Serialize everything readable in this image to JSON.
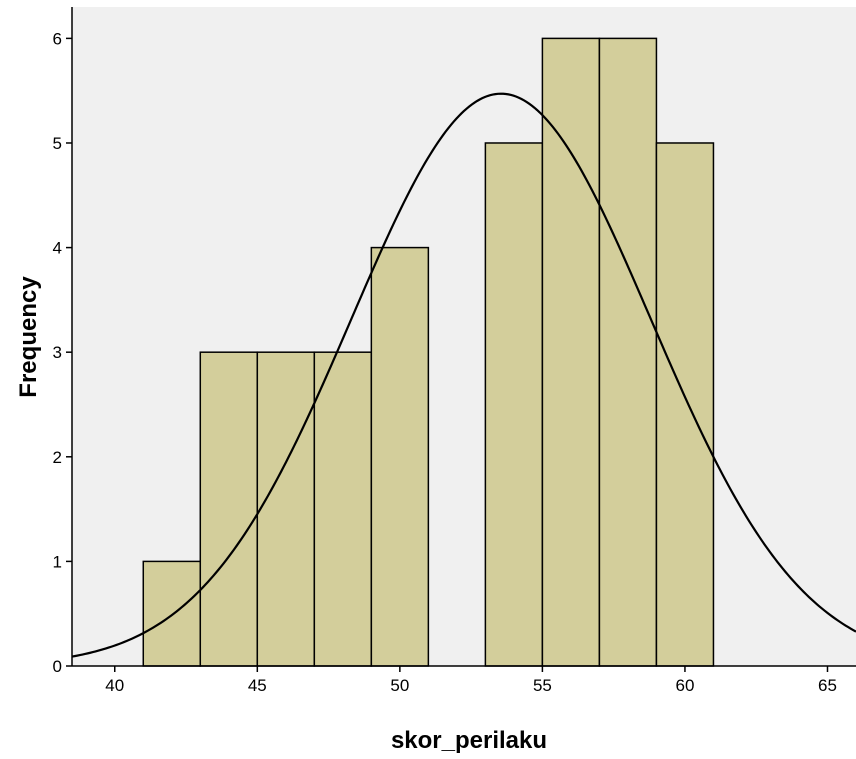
{
  "chart_data": {
    "type": "histogram",
    "xlabel": "skor_perilaku",
    "ylabel": "Frequency",
    "xlim": [
      38.5,
      66
    ],
    "ylim": [
      0,
      6.3
    ],
    "x_ticks": [
      40,
      45,
      50,
      55,
      60,
      65
    ],
    "y_ticks": [
      0,
      1,
      2,
      3,
      4,
      5,
      6
    ],
    "bins": [
      {
        "start": 41,
        "end": 43,
        "count": 1
      },
      {
        "start": 43,
        "end": 45,
        "count": 3
      },
      {
        "start": 45,
        "end": 47,
        "count": 3
      },
      {
        "start": 47,
        "end": 49,
        "count": 3
      },
      {
        "start": 49,
        "end": 51,
        "count": 4
      },
      {
        "start": 51,
        "end": 53,
        "count": 0
      },
      {
        "start": 53,
        "end": 55,
        "count": 5
      },
      {
        "start": 55,
        "end": 57,
        "count": 6
      },
      {
        "start": 57,
        "end": 59,
        "count": 6
      },
      {
        "start": 59,
        "end": 61,
        "count": 5
      }
    ],
    "normal_curve": {
      "mean": 53.55,
      "std_dev": 5.25,
      "n": 36,
      "bin_width": 2
    },
    "grid": false,
    "colors": {
      "plot_bg": "#f0f0f0",
      "bar_fill": "#d3ce9b",
      "bar_stroke": "#000000",
      "curve": "#000000"
    }
  }
}
